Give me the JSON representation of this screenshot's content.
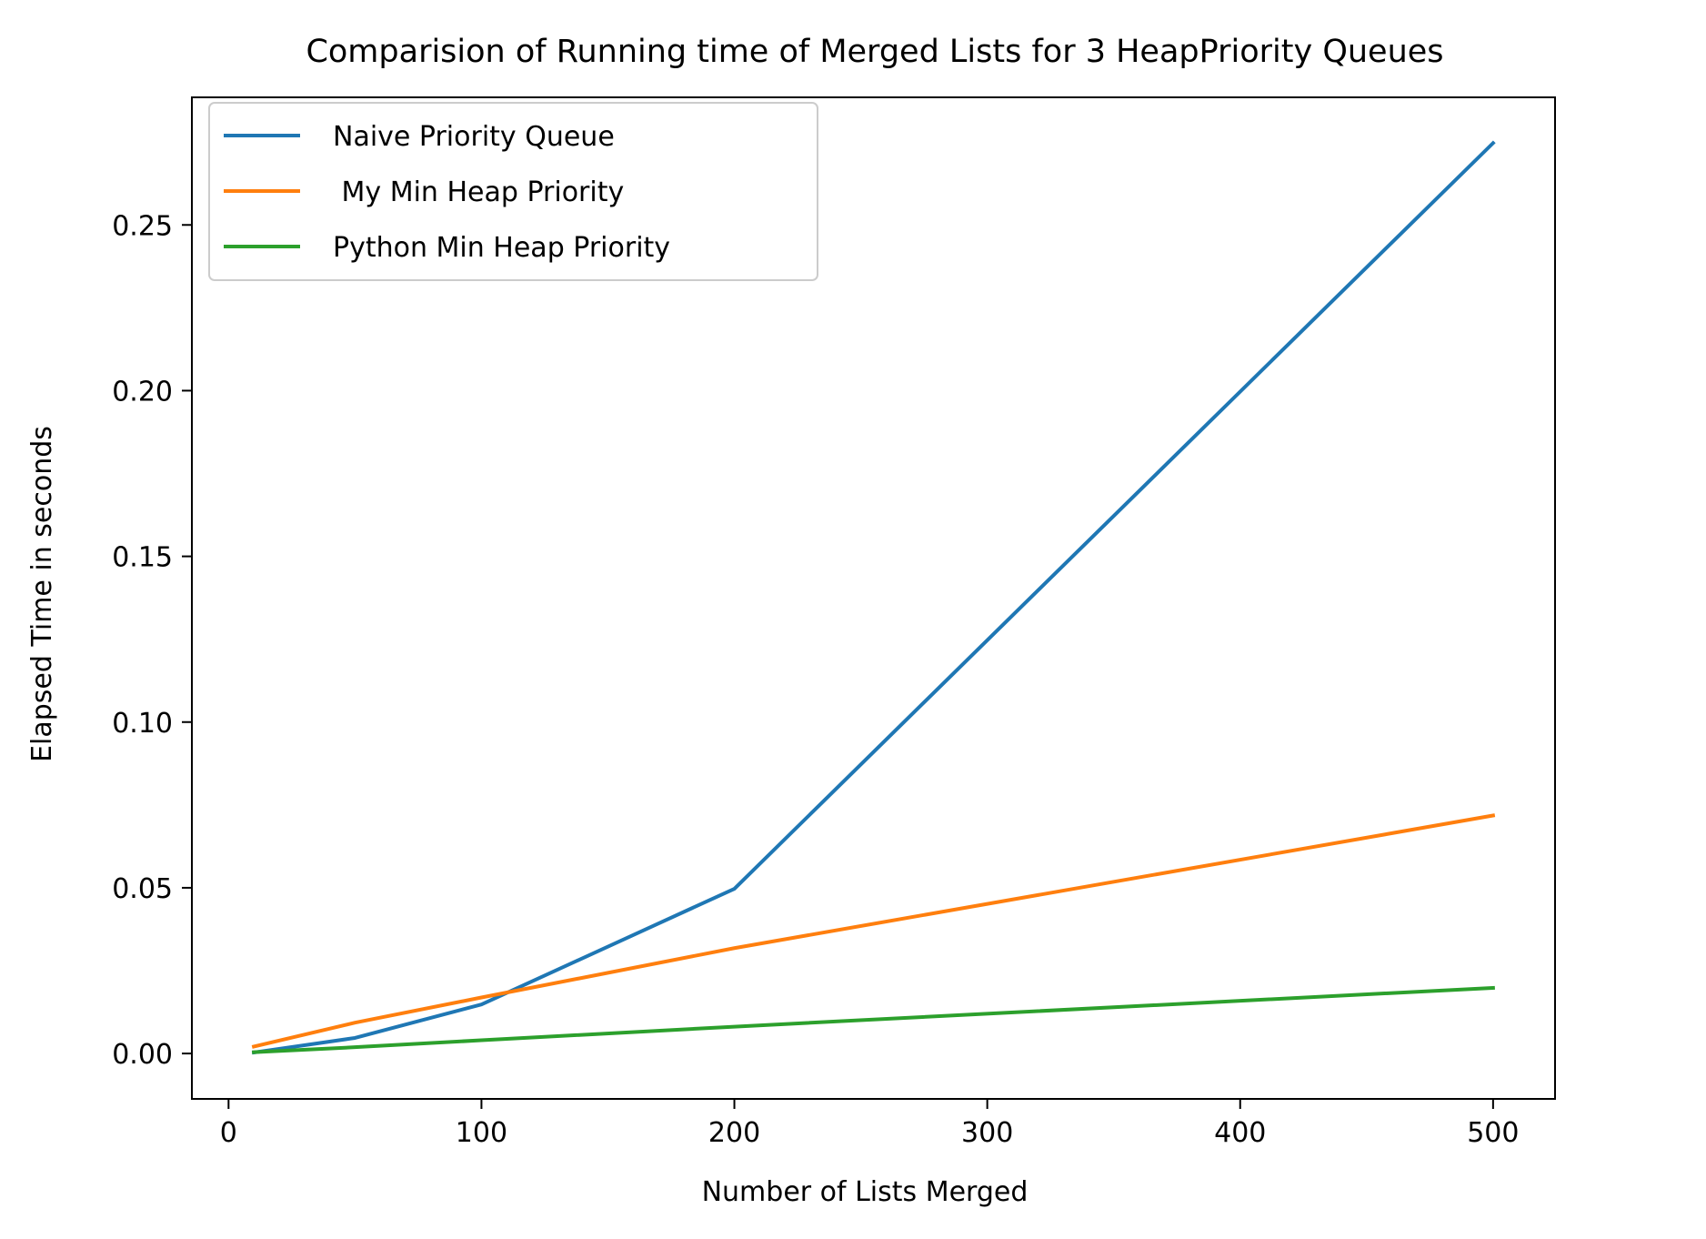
{
  "chart_data": {
    "type": "line",
    "title": "Comparision of Running time of Merged Lists for 3 HeapPriority Queues",
    "xlabel": "Number of Lists Merged",
    "ylabel": "Elapsed Time in seconds",
    "xlim": [
      -14.5,
      524.5
    ],
    "ylim": [
      -0.0137,
      0.2885
    ],
    "xticks": [
      0,
      100,
      200,
      300,
      400,
      500
    ],
    "xtick_labels": [
      "0",
      "100",
      "200",
      "300",
      "400",
      "500"
    ],
    "yticks": [
      0.0,
      0.05,
      0.1,
      0.15,
      0.2,
      0.25
    ],
    "ytick_labels": [
      "0.00",
      "0.05",
      "0.10",
      "0.15",
      "0.20",
      "0.25"
    ],
    "grid": false,
    "legend_position": "top-left",
    "series": [
      {
        "name": "Naive Priority Queue",
        "color": "#1f77b4",
        "x": [
          10,
          50,
          100,
          200,
          500
        ],
        "y": [
          0.0003,
          0.0047,
          0.0148,
          0.0497,
          0.2747
        ]
      },
      {
        "name": " My Min Heap Priority",
        "color": "#ff7f0e",
        "x": [
          10,
          50,
          100,
          200,
          500
        ],
        "y": [
          0.0021,
          0.0093,
          0.0169,
          0.0318,
          0.0718
        ]
      },
      {
        "name": "Python Min Heap Priority",
        "color": "#2ca02c",
        "x": [
          10,
          50,
          100,
          200,
          500
        ],
        "y": [
          0.0004,
          0.0019,
          0.004,
          0.0081,
          0.0198
        ]
      }
    ]
  }
}
